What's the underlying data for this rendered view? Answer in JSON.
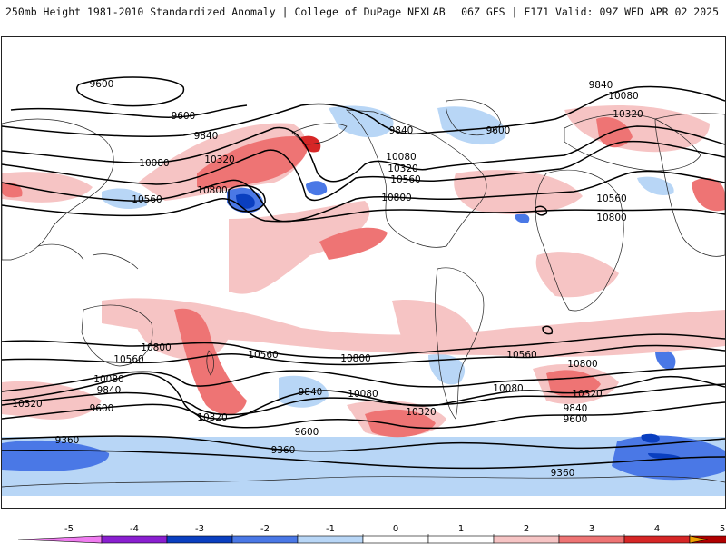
{
  "header": {
    "title": "250mb Height 1981-2010 Standardized Anomaly | College of DuPage NEXLAB",
    "run_info": "06Z GFS | F171 Valid: 09Z WED APR 02 2025"
  },
  "colors": {
    "m5": "#f07cf0",
    "m4": "#8a1fd0",
    "m3": "#0a3fc0",
    "m2": "#4a78e6",
    "m1": "#b8d6f6",
    "zero": "#ffffff",
    "p1": "#f6c4c4",
    "p2": "#ee7474",
    "p3": "#d62626",
    "p4": "#b00000",
    "p5": "#f0a000",
    "contour": "#000000",
    "coast": "#222222"
  },
  "colorbar": {
    "ticks": [
      "-5",
      "-4",
      "-3",
      "-2",
      "-1",
      "0",
      "1",
      "2",
      "3",
      "4",
      "5"
    ]
  },
  "contour_labels": [
    "9600",
    "9600",
    "9840",
    "10080",
    "10320",
    "10560",
    "10800",
    "9840",
    "9600",
    "10080",
    "10320",
    "10560",
    "10800",
    "9840",
    "10080",
    "10320",
    "10560",
    "10800",
    "10800",
    "10560",
    "10080",
    "9840",
    "9600",
    "10320",
    "9360",
    "10560",
    "10800",
    "10320",
    "9840",
    "10080",
    "9600",
    "10320",
    "9360",
    "10560",
    "10800",
    "10080",
    "10320",
    "9840",
    "9600",
    "9360"
  ]
}
